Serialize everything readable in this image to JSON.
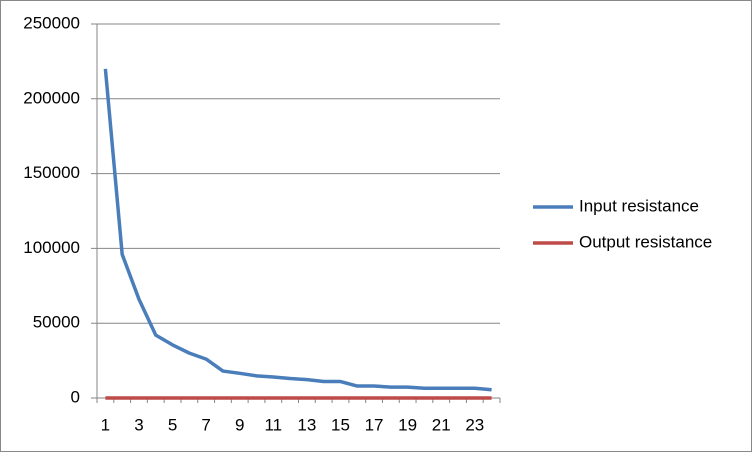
{
  "chart_data": {
    "type": "line",
    "categories": [
      1,
      null,
      3,
      null,
      5,
      null,
      7,
      null,
      9,
      null,
      11,
      null,
      13,
      null,
      15,
      null,
      17,
      null,
      19,
      null,
      21,
      null,
      23,
      null
    ],
    "series": [
      {
        "name": "Input resistance",
        "color": "#4a7ebb",
        "values": [
          220000,
          96000,
          66000,
          42000,
          35500,
          30000,
          26000,
          18000,
          16500,
          14800,
          14000,
          13000,
          12300,
          11000,
          11000,
          8000,
          8000,
          7300,
          7300,
          6500,
          6500,
          6500,
          6500,
          5500
        ]
      },
      {
        "name": "Output resistance",
        "color": "#be4b48",
        "values": [
          0,
          0,
          0,
          0,
          0,
          0,
          0,
          0,
          0,
          0,
          0,
          0,
          0,
          0,
          0,
          0,
          0,
          0,
          0,
          0,
          0,
          0,
          0,
          0
        ]
      }
    ],
    "ylim": [
      0,
      250000
    ],
    "yticks": [
      0,
      50000,
      100000,
      150000,
      200000,
      250000
    ],
    "grid": true,
    "legend": "right"
  }
}
